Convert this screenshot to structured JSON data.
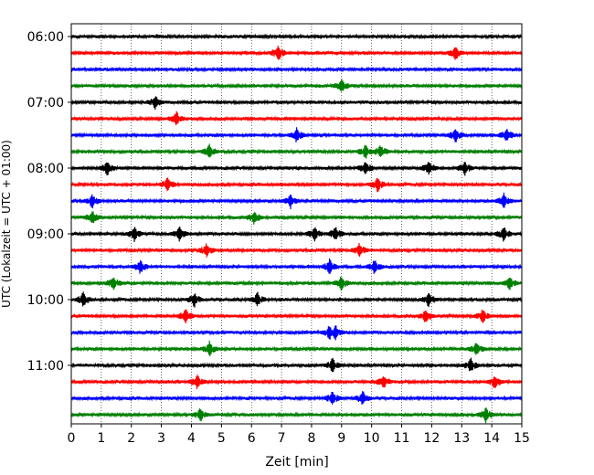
{
  "chart_data": {
    "type": "line",
    "title": "",
    "xlabel": "Zeit  [min]",
    "ylabel": "UTC (Lokalzeit = UTC + 01:00)",
    "xlim": [
      0,
      15
    ],
    "x_ticks": [
      "0",
      "1",
      "2",
      "3",
      "4",
      "5",
      "6",
      "7",
      "8",
      "9",
      "10",
      "11",
      "12",
      "13",
      "14",
      "15"
    ],
    "y_ticks": [
      "06:00",
      "07:00",
      "08:00",
      "09:00",
      "10:00",
      "11:00"
    ],
    "grid": "vertical dotted",
    "legend": "none",
    "trace_interval_minutes": 15,
    "trace_start": "06:00",
    "trace_count": 24,
    "trace_colors": [
      "#000000",
      "#ff0000",
      "#0000ff",
      "#008000"
    ],
    "events": [
      {
        "trace": 1,
        "x": [
          6.9,
          12.8
        ]
      },
      {
        "trace": 3,
        "x": [
          9.0
        ]
      },
      {
        "trace": 4,
        "x": [
          2.8
        ]
      },
      {
        "trace": 5,
        "x": [
          3.5
        ]
      },
      {
        "trace": 6,
        "x": [
          7.5,
          12.8,
          14.5
        ]
      },
      {
        "trace": 7,
        "x": [
          4.6,
          9.8,
          10.3
        ]
      },
      {
        "trace": 8,
        "x": [
          1.2,
          9.8,
          11.9,
          13.1
        ]
      },
      {
        "trace": 9,
        "x": [
          3.2,
          10.2
        ]
      },
      {
        "trace": 10,
        "x": [
          0.7,
          7.3,
          14.4
        ]
      },
      {
        "trace": 11,
        "x": [
          0.7,
          6.1
        ]
      },
      {
        "trace": 12,
        "x": [
          2.1,
          3.6,
          8.1,
          8.8,
          14.4
        ]
      },
      {
        "trace": 13,
        "x": [
          4.5,
          9.6
        ]
      },
      {
        "trace": 14,
        "x": [
          2.3,
          8.6,
          10.1
        ]
      },
      {
        "trace": 15,
        "x": [
          1.4,
          9.0,
          14.6
        ]
      },
      {
        "trace": 16,
        "x": [
          0.4,
          4.1,
          6.2,
          11.9
        ]
      },
      {
        "trace": 17,
        "x": [
          3.8,
          11.8,
          13.7
        ]
      },
      {
        "trace": 18,
        "x": [
          8.6,
          8.8
        ]
      },
      {
        "trace": 19,
        "x": [
          4.6,
          13.5
        ]
      },
      {
        "trace": 20,
        "x": [
          8.7,
          13.3
        ]
      },
      {
        "trace": 21,
        "x": [
          4.2,
          10.4,
          14.1
        ]
      },
      {
        "trace": 22,
        "x": [
          8.7,
          9.7
        ]
      },
      {
        "trace": 23,
        "x": [
          4.3,
          13.8
        ]
      }
    ]
  }
}
